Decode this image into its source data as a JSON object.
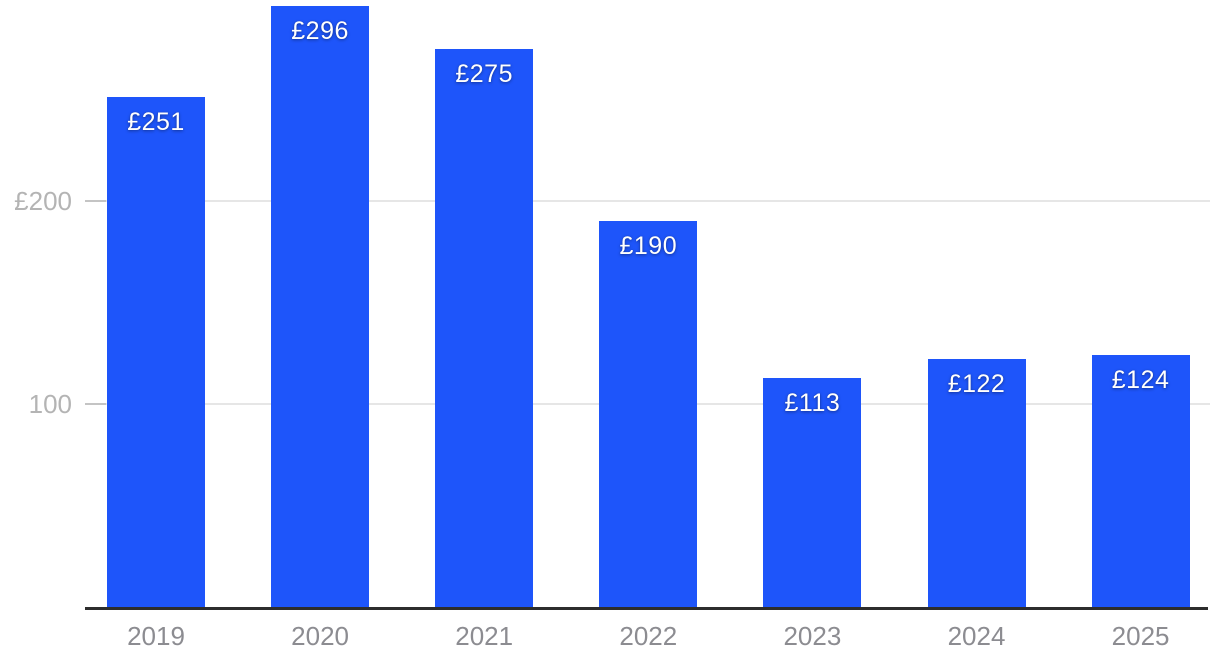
{
  "chart_data": {
    "type": "bar",
    "title": "",
    "xlabel": "",
    "ylabel": "",
    "categories": [
      "2019",
      "2020",
      "2021",
      "2022",
      "2023",
      "2024",
      "2025"
    ],
    "values": [
      251,
      296,
      275,
      190,
      113,
      122,
      124
    ],
    "bar_labels": [
      "£251",
      "£296",
      "£275",
      "£190",
      "£113",
      "£122",
      "£124"
    ],
    "currency_prefix": "£",
    "y_ticks": [
      {
        "value": 100,
        "label": "100"
      },
      {
        "value": 200,
        "label": "£200"
      }
    ],
    "ylim": [
      0,
      300
    ],
    "grid": "horizontal-only",
    "legend": "none",
    "colors": {
      "bar_fill": "#1e55fa",
      "bar_label_text": "#ffffff",
      "x_axis_line": "#2d2d2d",
      "x_tick_label": "#8c8c91",
      "y_tick_label": "#b4b4b4",
      "gridline": "#e6e6e6",
      "tick_mark": "#c4c4c4",
      "background": "#ffffff"
    }
  }
}
